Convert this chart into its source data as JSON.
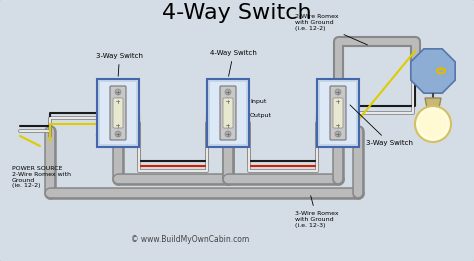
{
  "title": "4-Way Switch",
  "title_fontsize": 16,
  "bg_color": "#d4dde6",
  "border_color": "#999999",
  "labels": {
    "title": "4-Way Switch",
    "switch1": "3-Way Switch",
    "switch2": "4-Way Switch",
    "switch3": "3-Way Switch",
    "power_source": "POWER SOURCE\n2-Wire Romex with\nGround\n(ie. 12-2)",
    "romex_top": "2-Wire Romex\nwith Ground\n(i.e. 12-2)",
    "romex_bottom": "3-Wire Romex\nwith Ground\n(i.e. 12-3)",
    "input_label": "Input",
    "output_label": "Output",
    "website": "© www.BuildMyOwnCabin.com"
  },
  "wire_colors": {
    "black": "#1a1a1a",
    "white": "#e8e8e8",
    "red": "#cc2200",
    "yellow": "#ddcc00",
    "green": "#226622",
    "gray": "#aaaaaa",
    "gray_dark": "#888888"
  },
  "figsize": [
    4.74,
    2.61
  ],
  "dpi": 100
}
